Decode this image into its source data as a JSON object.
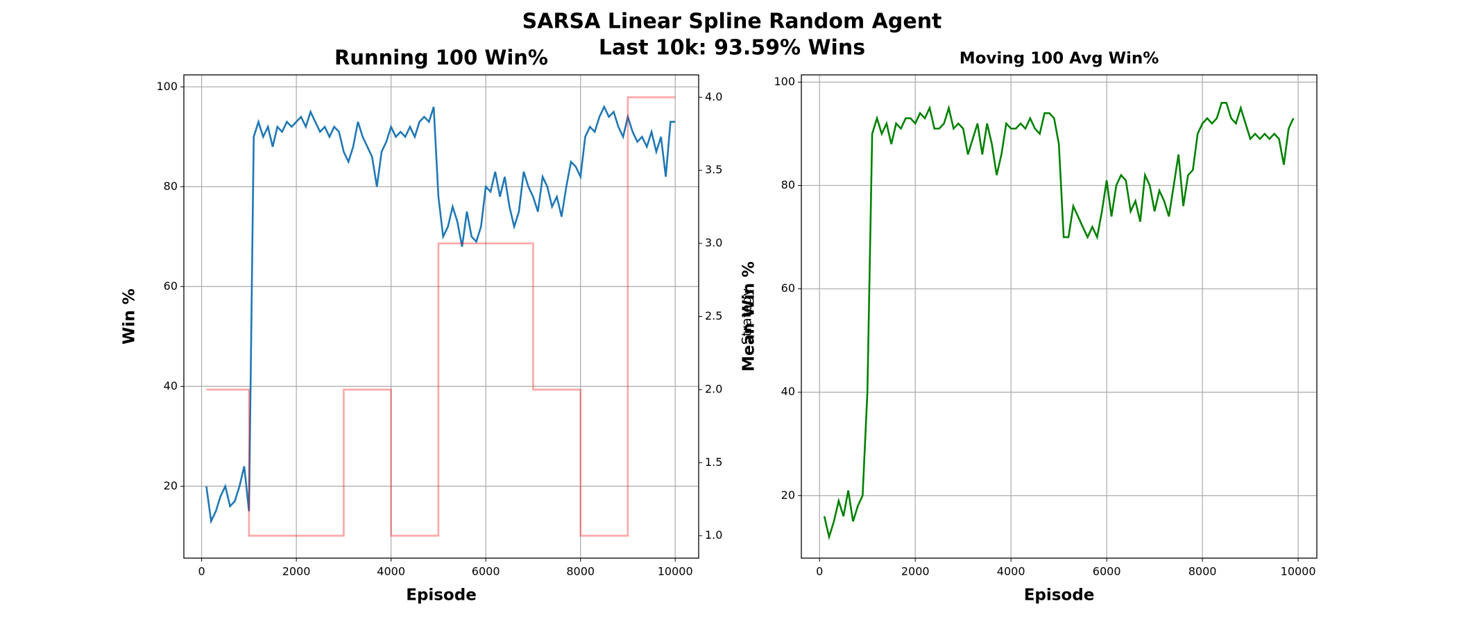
{
  "title": [
    "SARSA Linear Spline Random Agent",
    "Last 10k: 93.59% Wins"
  ],
  "chart_data": [
    {
      "type": "line",
      "title": "Running 100 Win%",
      "xlabel": "Episode",
      "ylabel": "Win %",
      "y2label": "Strategy",
      "xlim": [
        -375,
        10495
      ],
      "xticks": [
        0,
        2000,
        4000,
        6000,
        8000,
        10000
      ],
      "ylim": [
        5.6,
        102.4
      ],
      "yticks": [
        20,
        40,
        60,
        80,
        100
      ],
      "y2lim": [
        0.847,
        4.153
      ],
      "y2ticks": [
        {
          "value": 1,
          "label": "1.0"
        },
        {
          "value": 1.5,
          "label": "1.5"
        },
        {
          "value": 2,
          "label": "2.0"
        },
        {
          "value": 2.5,
          "label": "2.5"
        },
        {
          "value": 3,
          "label": "3.0"
        },
        {
          "value": 3.5,
          "label": "3.5"
        },
        {
          "value": 4,
          "label": "4.0"
        }
      ],
      "grid": true,
      "series": [
        {
          "name": "Win %",
          "color": "#1f77b4",
          "x": [
            100,
            200,
            300,
            400,
            500,
            600,
            700,
            800,
            900,
            1000,
            1100,
            1200,
            1300,
            1400,
            1500,
            1600,
            1700,
            1800,
            1900,
            2000,
            2100,
            2200,
            2300,
            2400,
            2500,
            2600,
            2700,
            2800,
            2900,
            3000,
            3100,
            3200,
            3300,
            3400,
            3500,
            3600,
            3700,
            3800,
            3900,
            4000,
            4100,
            4200,
            4300,
            4400,
            4500,
            4600,
            4700,
            4800,
            4900,
            5000,
            5100,
            5200,
            5300,
            5400,
            5500,
            5600,
            5700,
            5800,
            5900,
            6000,
            6100,
            6200,
            6300,
            6400,
            6500,
            6600,
            6700,
            6800,
            6900,
            7000,
            7100,
            7200,
            7300,
            7400,
            7500,
            7600,
            7700,
            7800,
            7900,
            8000,
            8100,
            8200,
            8300,
            8400,
            8500,
            8600,
            8700,
            8800,
            8900,
            9000,
            9100,
            9200,
            9300,
            9400,
            9500,
            9600,
            9700,
            9800,
            9900,
            10000
          ],
          "values": [
            20,
            13,
            15,
            18,
            20,
            16,
            17,
            20,
            24,
            15,
            90,
            93,
            90,
            92,
            88,
            92,
            91,
            93,
            92,
            93,
            94,
            92,
            95,
            93,
            91,
            92,
            90,
            92,
            91,
            87,
            85,
            88,
            93,
            90,
            88,
            86,
            80,
            87,
            89,
            92,
            90,
            91,
            90,
            92,
            90,
            93,
            94,
            93,
            96,
            78,
            70,
            72,
            76,
            73,
            68,
            75,
            70,
            69,
            72,
            80,
            79,
            83,
            78,
            82,
            76,
            72,
            75,
            83,
            80,
            78,
            75,
            82,
            80,
            76,
            78,
            74,
            80,
            85,
            84,
            82,
            90,
            92,
            91,
            94,
            96,
            94,
            95,
            92,
            90,
            94,
            91,
            89,
            90,
            88,
            91,
            87,
            90,
            82,
            93,
            93
          ]
        },
        {
          "name": "Strategy",
          "color": "#ff0000",
          "opacity": 0.35,
          "axis": "y2",
          "x": [
            100,
            1000,
            1000,
            3000,
            3000,
            4000,
            4000,
            5000,
            5000,
            7000,
            7000,
            8000,
            8000,
            9000,
            9000,
            10000
          ],
          "values": [
            2,
            2,
            1,
            1,
            2,
            2,
            1,
            1,
            3,
            3,
            2,
            2,
            1,
            1,
            4,
            4
          ]
        }
      ]
    },
    {
      "type": "line",
      "title": "Moving 100 Avg Win%",
      "xlabel": "Episode",
      "ylabel": "Mean Win %",
      "xlim": [
        -380,
        10390
      ],
      "xticks": [
        0,
        2000,
        4000,
        6000,
        8000,
        10000
      ],
      "ylim": [
        7.9,
        101.4
      ],
      "yticks": [
        20,
        40,
        60,
        80,
        100
      ],
      "grid": true,
      "series": [
        {
          "name": "Mean Win %",
          "color": "#008000",
          "x": [
            100,
            200,
            300,
            400,
            500,
            600,
            700,
            800,
            900,
            1000,
            1100,
            1200,
            1300,
            1400,
            1500,
            1600,
            1700,
            1800,
            1900,
            2000,
            2100,
            2200,
            2300,
            2400,
            2500,
            2600,
            2700,
            2800,
            2900,
            3000,
            3100,
            3200,
            3300,
            3400,
            3500,
            3600,
            3700,
            3800,
            3900,
            4000,
            4100,
            4200,
            4300,
            4400,
            4500,
            4600,
            4700,
            4800,
            4900,
            5000,
            5100,
            5200,
            5300,
            5400,
            5500,
            5600,
            5700,
            5800,
            5900,
            6000,
            6100,
            6200,
            6300,
            6400,
            6500,
            6600,
            6700,
            6800,
            6900,
            7000,
            7100,
            7200,
            7300,
            7400,
            7500,
            7600,
            7700,
            7800,
            7900,
            8000,
            8100,
            8200,
            8300,
            8400,
            8500,
            8600,
            8700,
            8800,
            8900,
            9000,
            9100,
            9200,
            9300,
            9400,
            9500,
            9600,
            9700,
            9800,
            9900
          ],
          "values": [
            16,
            12,
            15,
            19,
            16,
            21,
            15,
            18,
            20,
            40,
            90,
            93,
            90,
            92,
            88,
            92,
            91,
            93,
            93,
            92,
            94,
            93,
            95,
            91,
            91,
            92,
            95,
            91,
            92,
            91,
            86,
            89,
            92,
            86,
            92,
            88,
            82,
            86,
            92,
            91,
            91,
            92,
            91,
            93,
            91,
            90,
            94,
            94,
            93,
            88,
            70,
            70,
            76,
            74,
            72,
            70,
            72,
            70,
            75,
            81,
            74,
            80,
            82,
            81,
            75,
            77,
            73,
            82,
            80,
            75,
            79,
            77,
            74,
            80,
            86,
            76,
            82,
            83,
            90,
            92,
            93,
            92,
            93,
            96,
            96,
            93,
            92,
            95,
            92,
            89,
            90,
            89,
            90,
            89,
            90,
            89,
            84,
            91,
            93
          ]
        }
      ]
    }
  ]
}
